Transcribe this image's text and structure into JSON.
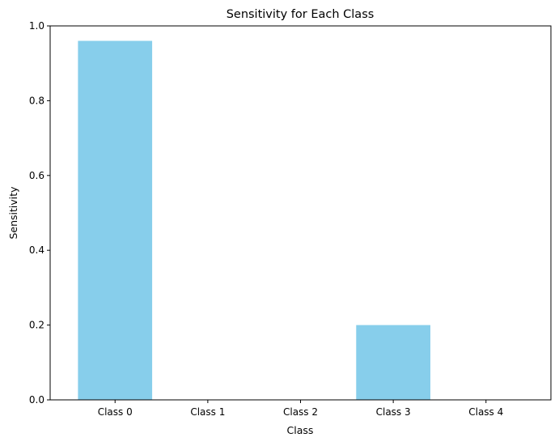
{
  "chart_data": {
    "type": "bar",
    "title": "Sensitivity for Each Class",
    "xlabel": "Class",
    "ylabel": "Sensitivity",
    "categories": [
      "Class 0",
      "Class 1",
      "Class 2",
      "Class 3",
      "Class 4"
    ],
    "values": [
      0.96,
      0.0,
      0.0,
      0.2,
      0.0
    ],
    "ylim": [
      0,
      1.0
    ],
    "yticks": [
      0.0,
      0.2,
      0.4,
      0.6,
      0.8,
      1.0
    ],
    "ytick_labels": [
      "0.0",
      "0.2",
      "0.4",
      "0.6",
      "0.8",
      "1.0"
    ],
    "grid": false,
    "bar_color": "#87ceeb"
  }
}
